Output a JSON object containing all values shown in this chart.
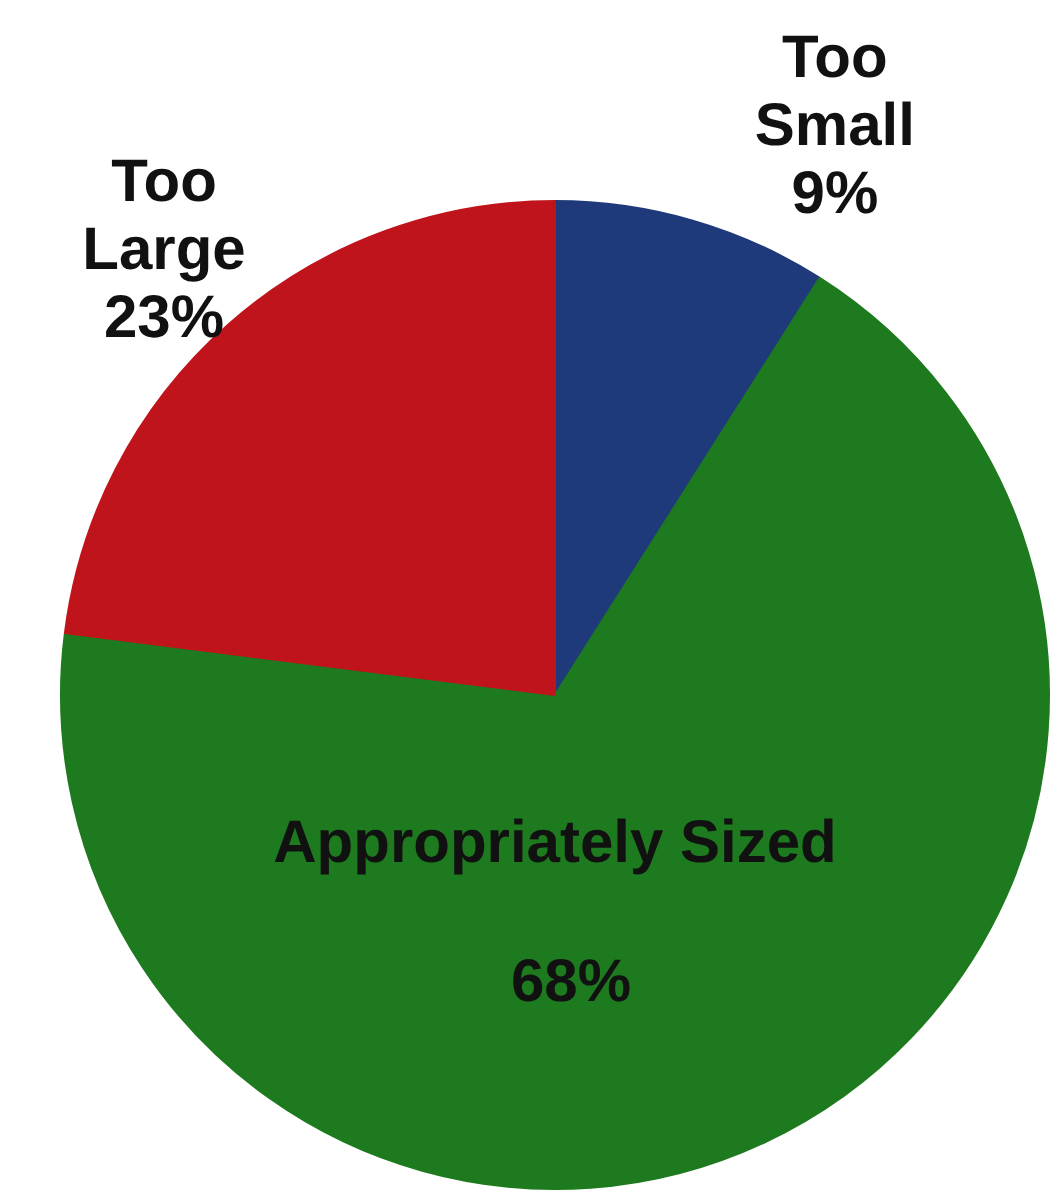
{
  "chart_data": {
    "type": "pie",
    "categories": [
      "Too Small",
      "Appropriately Sized",
      "Too Large"
    ],
    "values": [
      9,
      68,
      23
    ],
    "value_labels": [
      "9%",
      "68%",
      "23%"
    ],
    "colors": [
      "#1f3a7a",
      "#1e7a1e",
      "#c0141c"
    ]
  }
}
